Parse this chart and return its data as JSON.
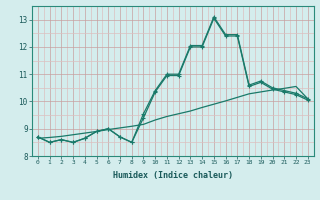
{
  "x": [
    0,
    1,
    2,
    3,
    4,
    5,
    6,
    7,
    8,
    9,
    10,
    11,
    12,
    13,
    14,
    15,
    16,
    17,
    18,
    19,
    20,
    21,
    22,
    23
  ],
  "y_jagged_upper": [
    8.7,
    8.5,
    8.6,
    8.5,
    8.65,
    8.9,
    9.0,
    8.7,
    8.5,
    9.55,
    10.4,
    11.0,
    11.0,
    12.05,
    12.05,
    13.1,
    12.45,
    12.45,
    10.6,
    10.75,
    10.5,
    10.4,
    10.3,
    10.1
  ],
  "y_jagged_lower": [
    8.7,
    8.5,
    8.6,
    8.5,
    8.65,
    8.9,
    9.0,
    8.7,
    8.5,
    9.4,
    10.35,
    10.95,
    10.95,
    12.0,
    12.0,
    13.05,
    12.4,
    12.4,
    10.55,
    10.7,
    10.45,
    10.35,
    10.25,
    10.05
  ],
  "y_trend": [
    8.65,
    8.68,
    8.72,
    8.78,
    8.84,
    8.9,
    8.97,
    9.03,
    9.09,
    9.16,
    9.32,
    9.45,
    9.55,
    9.65,
    9.78,
    9.9,
    10.02,
    10.15,
    10.28,
    10.35,
    10.42,
    10.48,
    10.55,
    10.1
  ],
  "bg_color": "#d4eded",
  "grid_major_color": "#c8a0a0",
  "grid_minor_color": "#dcc0c0",
  "line_color": "#1a7a6a",
  "xlabel": "Humidex (Indice chaleur)",
  "ylim": [
    8.0,
    13.5
  ],
  "yticks": [
    8,
    9,
    10,
    11,
    12,
    13
  ],
  "xlim": [
    -0.5,
    23.5
  ],
  "xticks": [
    0,
    1,
    2,
    3,
    4,
    5,
    6,
    7,
    8,
    9,
    10,
    11,
    12,
    13,
    14,
    15,
    16,
    17,
    18,
    19,
    20,
    21,
    22,
    23
  ]
}
